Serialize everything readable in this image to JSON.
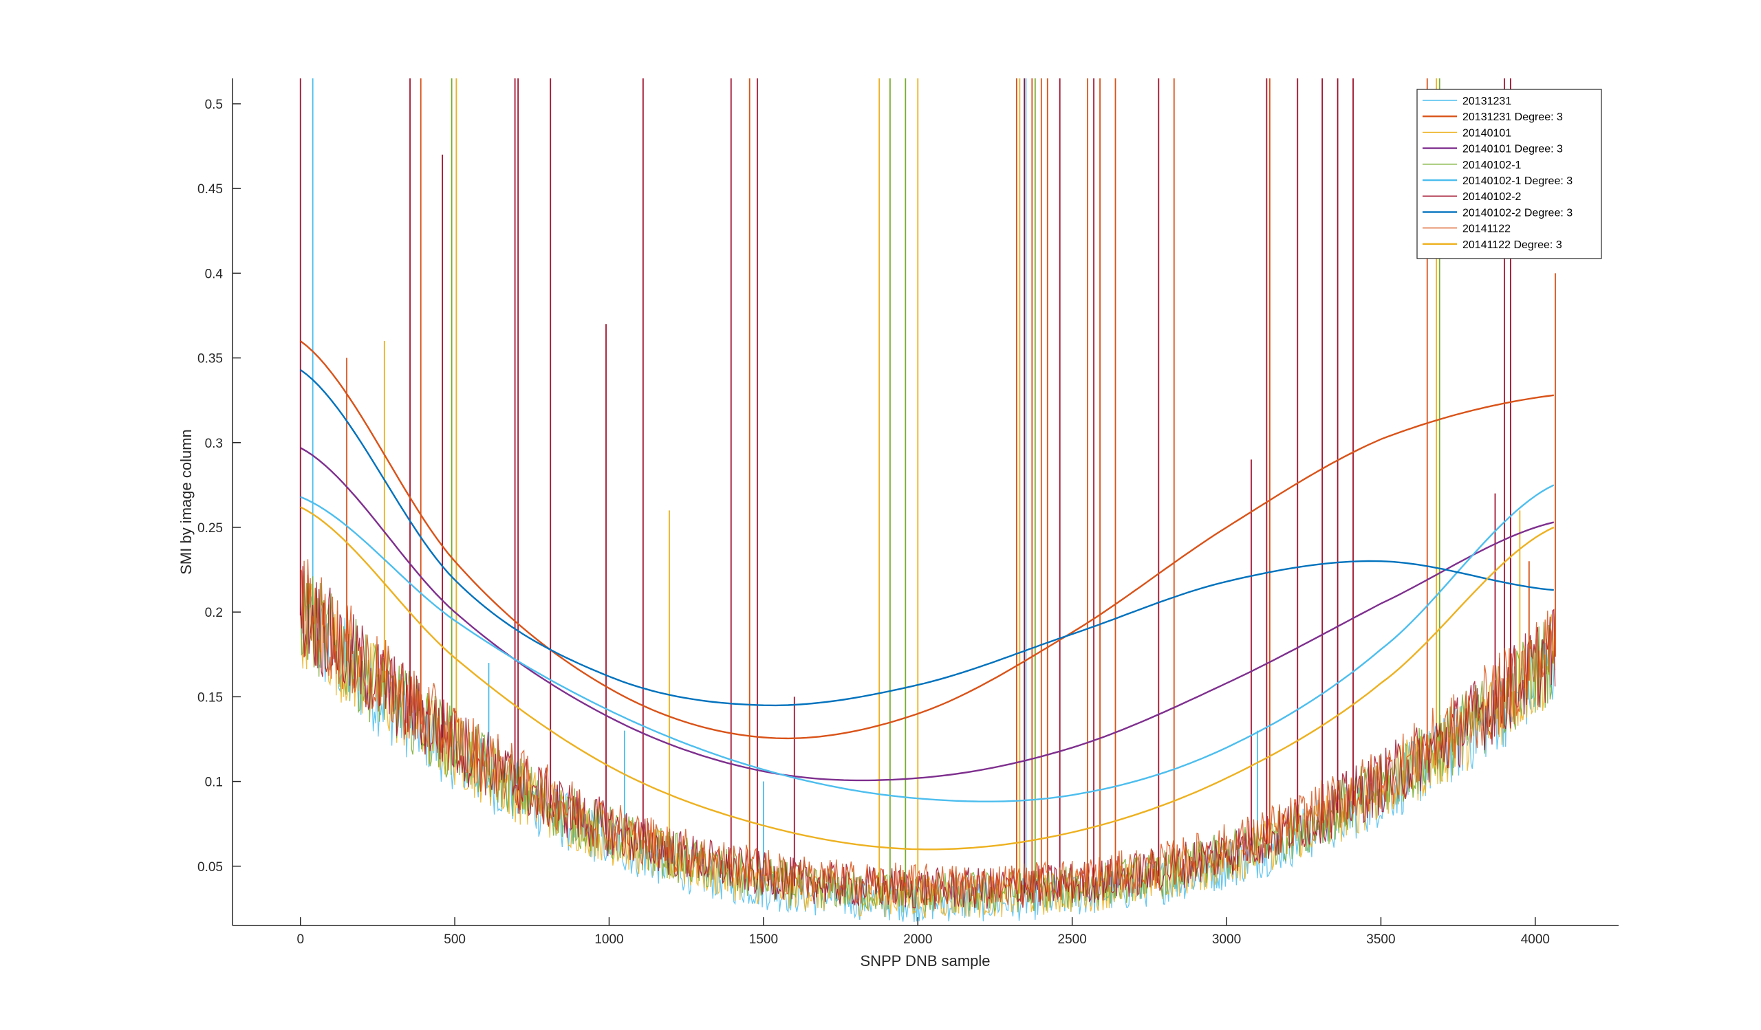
{
  "chart_data": {
    "type": "line",
    "xlabel": "SNPP DNB sample",
    "ylabel": "SMI by image column",
    "xlim": [
      -220,
      4270
    ],
    "ylim": [
      0.015,
      0.515
    ],
    "xticks": [
      0,
      500,
      1000,
      1500,
      2000,
      2500,
      3000,
      3500,
      4000
    ],
    "xtick_labels": [
      "0",
      "500",
      "1000",
      "1500",
      "2000",
      "2500",
      "3000",
      "3500",
      "4000"
    ],
    "yticks": [
      0.05,
      0.1,
      0.15,
      0.2,
      0.25,
      0.3,
      0.35,
      0.4,
      0.45,
      0.5
    ],
    "ytick_labels": [
      "0.05",
      "0.1",
      "0.15",
      "0.2",
      "0.25",
      "0.3",
      "0.35",
      "0.4",
      "0.45",
      "0.5"
    ],
    "grid": false,
    "legend_position": "top-right",
    "series": [
      {
        "name": "20131231",
        "kind": "raw",
        "color": "#4DBEEE",
        "spikes": [
          [
            40,
            0.52
          ],
          [
            610,
            0.17
          ],
          [
            1050,
            0.13
          ],
          [
            1500,
            0.1
          ],
          [
            2350,
            0.52
          ],
          [
            3100,
            0.13
          ],
          [
            3920,
            0.26
          ]
        ]
      },
      {
        "name": "20131231 Degree: 3",
        "kind": "fit",
        "color": "#D95319",
        "x": [
          0,
          500,
          1000,
          1500,
          2000,
          2500,
          3000,
          3500,
          4060
        ],
        "y": [
          0.36,
          0.23,
          0.155,
          0.126,
          0.14,
          0.188,
          0.25,
          0.302,
          0.328
        ]
      },
      {
        "name": "20140101",
        "kind": "raw",
        "color": "#EDB120",
        "spikes": [
          [
            272,
            0.36
          ],
          [
            505,
            0.52
          ],
          [
            1195,
            0.26
          ],
          [
            1875,
            0.52
          ],
          [
            2000,
            0.52
          ],
          [
            2330,
            0.52
          ],
          [
            3680,
            0.52
          ],
          [
            3950,
            0.26
          ]
        ]
      },
      {
        "name": "20140101 Degree: 3",
        "kind": "fit",
        "color": "#7E2F8E",
        "x": [
          0,
          500,
          1000,
          1500,
          2000,
          2500,
          3000,
          3500,
          4060
        ],
        "y": [
          0.297,
          0.2,
          0.138,
          0.106,
          0.102,
          0.12,
          0.158,
          0.205,
          0.253
        ]
      },
      {
        "name": "20140102-1",
        "kind": "raw",
        "color": "#77AC30",
        "spikes": [
          [
            490,
            0.52
          ],
          [
            1910,
            0.52
          ],
          [
            1960,
            0.52
          ],
          [
            2380,
            0.52
          ],
          [
            3690,
            0.52
          ]
        ]
      },
      {
        "name": "20140102-1 Degree: 3",
        "kind": "fit",
        "color": "#4DBEEE",
        "x": [
          0,
          500,
          1000,
          1500,
          2000,
          2500,
          3000,
          3500,
          4060
        ],
        "y": [
          0.268,
          0.195,
          0.142,
          0.107,
          0.09,
          0.092,
          0.12,
          0.178,
          0.275
        ]
      },
      {
        "name": "20140102-2",
        "kind": "raw",
        "color": "#A2142F",
        "spikes": [
          [
            0,
            0.52
          ],
          [
            355,
            0.52
          ],
          [
            460,
            0.47
          ],
          [
            695,
            0.52
          ],
          [
            705,
            0.52
          ],
          [
            810,
            0.52
          ],
          [
            990,
            0.37
          ],
          [
            1110,
            0.52
          ],
          [
            1395,
            0.52
          ],
          [
            1480,
            0.52
          ],
          [
            1600,
            0.15
          ],
          [
            2345,
            0.52
          ],
          [
            2460,
            0.52
          ],
          [
            2570,
            0.52
          ],
          [
            2780,
            0.52
          ],
          [
            3080,
            0.29
          ],
          [
            3130,
            0.52
          ],
          [
            3230,
            0.52
          ],
          [
            3310,
            0.52
          ],
          [
            3360,
            0.52
          ],
          [
            3410,
            0.52
          ],
          [
            3870,
            0.27
          ],
          [
            3900,
            0.52
          ],
          [
            3920,
            0.52
          ]
        ]
      },
      {
        "name": "20140102-2 Degree: 3",
        "kind": "fit",
        "color": "#0072BD",
        "x": [
          0,
          500,
          1000,
          1500,
          2000,
          2500,
          3000,
          3500,
          4060
        ],
        "y": [
          0.343,
          0.219,
          0.162,
          0.145,
          0.157,
          0.187,
          0.218,
          0.23,
          0.213
        ]
      },
      {
        "name": "20141122",
        "kind": "raw",
        "color": "#D95319",
        "spikes": [
          [
            150,
            0.35
          ],
          [
            390,
            0.52
          ],
          [
            1455,
            0.52
          ],
          [
            2320,
            0.52
          ],
          [
            2370,
            0.52
          ],
          [
            2400,
            0.52
          ],
          [
            2420,
            0.52
          ],
          [
            2550,
            0.52
          ],
          [
            2590,
            0.52
          ],
          [
            2640,
            0.52
          ],
          [
            2830,
            0.52
          ],
          [
            3140,
            0.52
          ],
          [
            3650,
            0.52
          ],
          [
            3980,
            0.23
          ],
          [
            4065,
            0.4
          ]
        ]
      },
      {
        "name": "20141122 Degree: 3",
        "kind": "fit",
        "color": "#EDB120",
        "x": [
          0,
          500,
          1000,
          1500,
          2000,
          2500,
          3000,
          3500,
          4060
        ],
        "y": [
          0.262,
          0.173,
          0.109,
          0.074,
          0.06,
          0.07,
          0.102,
          0.158,
          0.25
        ]
      }
    ]
  }
}
